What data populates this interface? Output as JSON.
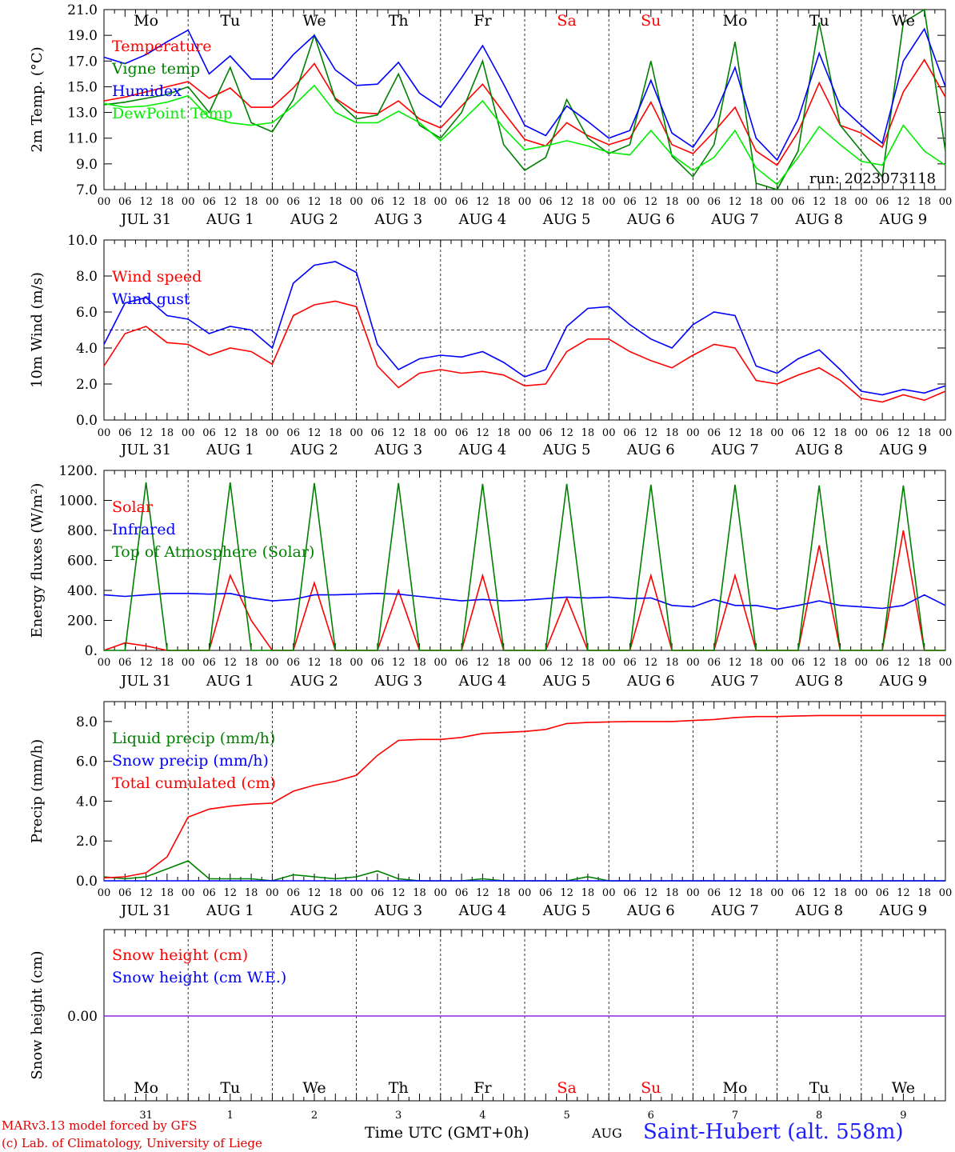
{
  "chart_data": [
    {
      "type": "line",
      "ylabel": "2m Temp. (°C)",
      "ylim": [
        7.0,
        21.0
      ],
      "yticks": [
        "7.0",
        "9.0",
        "11.0",
        "13.0",
        "15.0",
        "17.0",
        "19.0",
        "21.0"
      ],
      "day_names": [
        "Mo",
        "Tu",
        "We",
        "Th",
        "Fr",
        "Sa",
        "Su",
        "Mo",
        "Tu",
        "We"
      ],
      "run_label": "run: 2023073118",
      "x_hours": [
        0,
        6,
        12,
        18,
        24,
        30,
        36,
        42,
        48,
        54,
        60,
        66,
        72,
        78,
        84,
        90,
        96,
        102,
        108,
        114,
        120,
        126,
        132,
        138,
        144,
        150,
        156,
        162,
        168,
        174,
        180,
        186,
        192,
        198,
        204,
        210,
        216,
        222,
        228,
        234,
        240
      ],
      "series": [
        {
          "name": "Temperature",
          "color": "#ff0000",
          "values": [
            13.9,
            14.2,
            14.6,
            15.0,
            15.4,
            14.1,
            14.9,
            13.4,
            13.4,
            14.9,
            16.8,
            14.1,
            13.0,
            12.9,
            13.9,
            12.5,
            11.8,
            13.5,
            15.2,
            13.0,
            10.9,
            10.4,
            12.2,
            11.2,
            10.5,
            11.0,
            13.8,
            10.5,
            9.8,
            11.5,
            13.4,
            10.0,
            8.9,
            11.5,
            15.3,
            12.0,
            11.4,
            10.3,
            14.6,
            17.1,
            14.2
          ]
        },
        {
          "name": "Vigne temp",
          "color": "#008000",
          "values": [
            13.6,
            13.8,
            14.1,
            14.4,
            15.0,
            13.0,
            16.5,
            12.2,
            11.5,
            14.0,
            19.0,
            14.0,
            12.5,
            12.8,
            16.0,
            12.0,
            11.0,
            13.0,
            17.0,
            10.5,
            8.5,
            9.5,
            14.0,
            11.0,
            9.8,
            10.5,
            17.0,
            9.6,
            8.0,
            10.5,
            18.5,
            7.5,
            7.0,
            10.0,
            20.0,
            12.0,
            10.0,
            8.0,
            20.0,
            21.0,
            10.0
          ]
        },
        {
          "name": "Humidex",
          "color": "#0000ff",
          "values": [
            17.3,
            16.8,
            17.5,
            18.5,
            19.4,
            16.0,
            17.4,
            15.6,
            15.6,
            17.5,
            19.0,
            16.3,
            15.1,
            15.2,
            16.9,
            14.5,
            13.4,
            15.7,
            18.2,
            15.2,
            12.0,
            11.2,
            13.5,
            12.3,
            11.0,
            11.6,
            15.5,
            11.4,
            10.3,
            12.7,
            16.5,
            11.0,
            9.3,
            12.5,
            17.6,
            13.5,
            12.0,
            10.6,
            17.0,
            19.5,
            15.0
          ]
        },
        {
          "name": "DewPoint Temp",
          "color": "#00ee00",
          "values": [
            13.7,
            13.4,
            13.5,
            13.8,
            14.3,
            12.6,
            12.2,
            12.0,
            12.2,
            13.5,
            15.1,
            13.0,
            12.2,
            12.2,
            13.1,
            12.2,
            10.8,
            12.3,
            13.9,
            11.8,
            10.1,
            10.4,
            10.8,
            10.4,
            9.9,
            9.7,
            11.6,
            9.7,
            8.5,
            9.5,
            11.6,
            8.7,
            7.4,
            9.5,
            11.9,
            10.5,
            9.2,
            8.9,
            12.0,
            10.0,
            8.9
          ]
        }
      ]
    },
    {
      "type": "line",
      "ylabel": "10m Wind (m/s)",
      "ylim": [
        0.0,
        10.0
      ],
      "yticks": [
        "0.0",
        "2.0",
        "4.0",
        "6.0",
        "8.0",
        "10.0"
      ],
      "x_hours": [
        0,
        6,
        12,
        18,
        24,
        30,
        36,
        42,
        48,
        54,
        60,
        66,
        72,
        78,
        84,
        90,
        96,
        102,
        108,
        114,
        120,
        126,
        132,
        138,
        144,
        150,
        156,
        162,
        168,
        174,
        180,
        186,
        192,
        198,
        204,
        210,
        216,
        222,
        228,
        234,
        240
      ],
      "series": [
        {
          "name": "Wind speed",
          "color": "#ff0000",
          "values": [
            3.0,
            4.8,
            5.2,
            4.3,
            4.2,
            3.6,
            4.0,
            3.8,
            3.1,
            5.8,
            6.4,
            6.6,
            6.3,
            3.0,
            1.8,
            2.6,
            2.8,
            2.6,
            2.7,
            2.5,
            1.9,
            2.0,
            3.8,
            4.5,
            4.5,
            3.8,
            3.3,
            2.9,
            3.6,
            4.2,
            4.0,
            2.2,
            2.0,
            2.5,
            2.9,
            2.2,
            1.2,
            1.0,
            1.4,
            1.1,
            1.6
          ]
        },
        {
          "name": "Wind gust",
          "color": "#0000ff",
          "values": [
            4.2,
            6.5,
            6.8,
            5.8,
            5.6,
            4.8,
            5.2,
            5.0,
            4.0,
            7.6,
            8.6,
            8.8,
            8.2,
            4.2,
            2.8,
            3.4,
            3.6,
            3.5,
            3.8,
            3.2,
            2.4,
            2.8,
            5.2,
            6.2,
            6.3,
            5.3,
            4.5,
            4.0,
            5.3,
            6.0,
            5.8,
            3.0,
            2.6,
            3.4,
            3.9,
            2.8,
            1.6,
            1.4,
            1.7,
            1.5,
            1.9
          ]
        }
      ],
      "reference_line": 5.0
    },
    {
      "type": "line",
      "ylabel": "Energy fluxes (W/m²)",
      "ylim": [
        0,
        1200
      ],
      "yticks": [
        "0.",
        "200.",
        "400.",
        "600.",
        "800.",
        "1000.",
        "1200."
      ],
      "x_hours": [
        0,
        6,
        12,
        18,
        24,
        30,
        36,
        42,
        48,
        54,
        60,
        66,
        72,
        78,
        84,
        90,
        96,
        102,
        108,
        114,
        120,
        126,
        132,
        138,
        144,
        150,
        156,
        162,
        168,
        174,
        180,
        186,
        192,
        198,
        204,
        210,
        216,
        222,
        228,
        234,
        240
      ],
      "series": [
        {
          "name": "Solar",
          "color": "#ff0000",
          "values": [
            0,
            50,
            30,
            0,
            0,
            0,
            500,
            200,
            0,
            0,
            450,
            0,
            0,
            0,
            400,
            0,
            0,
            0,
            500,
            0,
            0,
            0,
            350,
            0,
            0,
            0,
            500,
            0,
            0,
            0,
            500,
            0,
            0,
            0,
            700,
            0,
            0,
            0,
            800,
            0,
            0
          ]
        },
        {
          "name": "Infrared",
          "color": "#0000ff",
          "values": [
            370,
            360,
            370,
            380,
            380,
            375,
            380,
            350,
            330,
            340,
            370,
            370,
            375,
            380,
            375,
            360,
            345,
            330,
            340,
            330,
            335,
            345,
            355,
            350,
            355,
            345,
            350,
            300,
            290,
            340,
            300,
            300,
            275,
            300,
            330,
            300,
            290,
            280,
            300,
            370,
            300
          ]
        },
        {
          "name": "Top of Atmosphere (Solar)",
          "color": "#008000",
          "values": [
            0,
            0,
            1120,
            0,
            0,
            0,
            1120,
            0,
            0,
            0,
            1115,
            0,
            0,
            0,
            1115,
            0,
            0,
            0,
            1110,
            0,
            0,
            0,
            1110,
            0,
            0,
            0,
            1105,
            0,
            0,
            0,
            1105,
            0,
            0,
            0,
            1100,
            0,
            0,
            0,
            1100,
            0,
            0
          ]
        }
      ]
    },
    {
      "type": "line",
      "ylabel": "Precip (mm/h)",
      "ylim": [
        0.0,
        9.0
      ],
      "yticks": [
        "0.0",
        "2.0",
        "4.0",
        "6.0",
        "8.0"
      ],
      "x_hours": [
        0,
        6,
        12,
        18,
        24,
        30,
        36,
        42,
        48,
        54,
        60,
        66,
        72,
        78,
        84,
        90,
        96,
        102,
        108,
        114,
        120,
        126,
        132,
        138,
        144,
        150,
        156,
        162,
        168,
        174,
        180,
        186,
        192,
        198,
        204,
        210,
        216,
        222,
        228,
        234,
        240
      ],
      "series": [
        {
          "name": "Liquid precip (mm/h)",
          "color": "#008000",
          "values": [
            0.2,
            0.1,
            0.2,
            0.6,
            1.0,
            0.1,
            0.1,
            0.1,
            0.0,
            0.3,
            0.2,
            0.1,
            0.2,
            0.5,
            0.1,
            0.0,
            0.0,
            0.0,
            0.1,
            0.0,
            0.0,
            0.0,
            0.0,
            0.2,
            0.0,
            0.0,
            0.0,
            0.0,
            0.0,
            0.0,
            0.0,
            0.0,
            0.0,
            0.0,
            0.0,
            0.0,
            0.0,
            0.0,
            0.0,
            0.0,
            0.0
          ]
        },
        {
          "name": "Snow precip (mm/h)",
          "color": "#0000ff",
          "values": [
            0,
            0,
            0,
            0,
            0,
            0,
            0,
            0,
            0,
            0,
            0,
            0,
            0,
            0,
            0,
            0,
            0,
            0,
            0,
            0,
            0,
            0,
            0,
            0,
            0,
            0,
            0,
            0,
            0,
            0,
            0,
            0,
            0,
            0,
            0,
            0,
            0,
            0,
            0,
            0,
            0
          ]
        },
        {
          "name": "Total cumulated (cm)",
          "color": "#ff0000",
          "values": [
            0.15,
            0.2,
            0.4,
            1.2,
            3.2,
            3.6,
            3.75,
            3.85,
            3.9,
            4.5,
            4.8,
            5.0,
            5.3,
            6.3,
            7.05,
            7.1,
            7.1,
            7.2,
            7.4,
            7.45,
            7.5,
            7.6,
            7.9,
            7.95,
            7.98,
            8.0,
            8.0,
            8.0,
            8.05,
            8.1,
            8.2,
            8.25,
            8.25,
            8.28,
            8.3,
            8.3,
            8.3,
            8.3,
            8.3,
            8.3,
            8.3
          ]
        }
      ]
    },
    {
      "type": "line",
      "ylabel": "Snow height (cm)",
      "yticks": [
        "0.00"
      ],
      "day_names": [
        "Mo",
        "Tu",
        "We",
        "Th",
        "Fr",
        "Sa",
        "Su",
        "Mo",
        "Tu",
        "We"
      ],
      "day_numbers": [
        "31",
        "1",
        "2",
        "3",
        "4",
        "5",
        "6",
        "7",
        "8",
        "9"
      ],
      "series": [
        {
          "name": "Snow height (cm)",
          "color": "#ff0000",
          "values": [
            0,
            0
          ]
        },
        {
          "name": "Snow height (cm W.E.)",
          "color": "#0000ff",
          "values": [
            0,
            0
          ]
        }
      ]
    }
  ],
  "x_axis": {
    "hour_ticks": [
      "00",
      "06",
      "12",
      "18"
    ],
    "final_tick": "00",
    "dates": [
      "JUL 31",
      "AUG  1",
      "AUG  2",
      "AUG  3",
      "AUG  4",
      "AUG  5",
      "AUG  6",
      "AUG  7",
      "AUG  8",
      "AUG  9"
    ]
  },
  "weekend_color": "#ff0000",
  "footer": {
    "credit_line1": "MARv3.13 model forced by GFS",
    "credit_line2": "(c) Lab. of Climatology, University of Liege",
    "xaxis_title": "Time UTC (GMT+0h)",
    "month": "AUG",
    "station": "Saint-Hubert (alt. 558m)"
  }
}
